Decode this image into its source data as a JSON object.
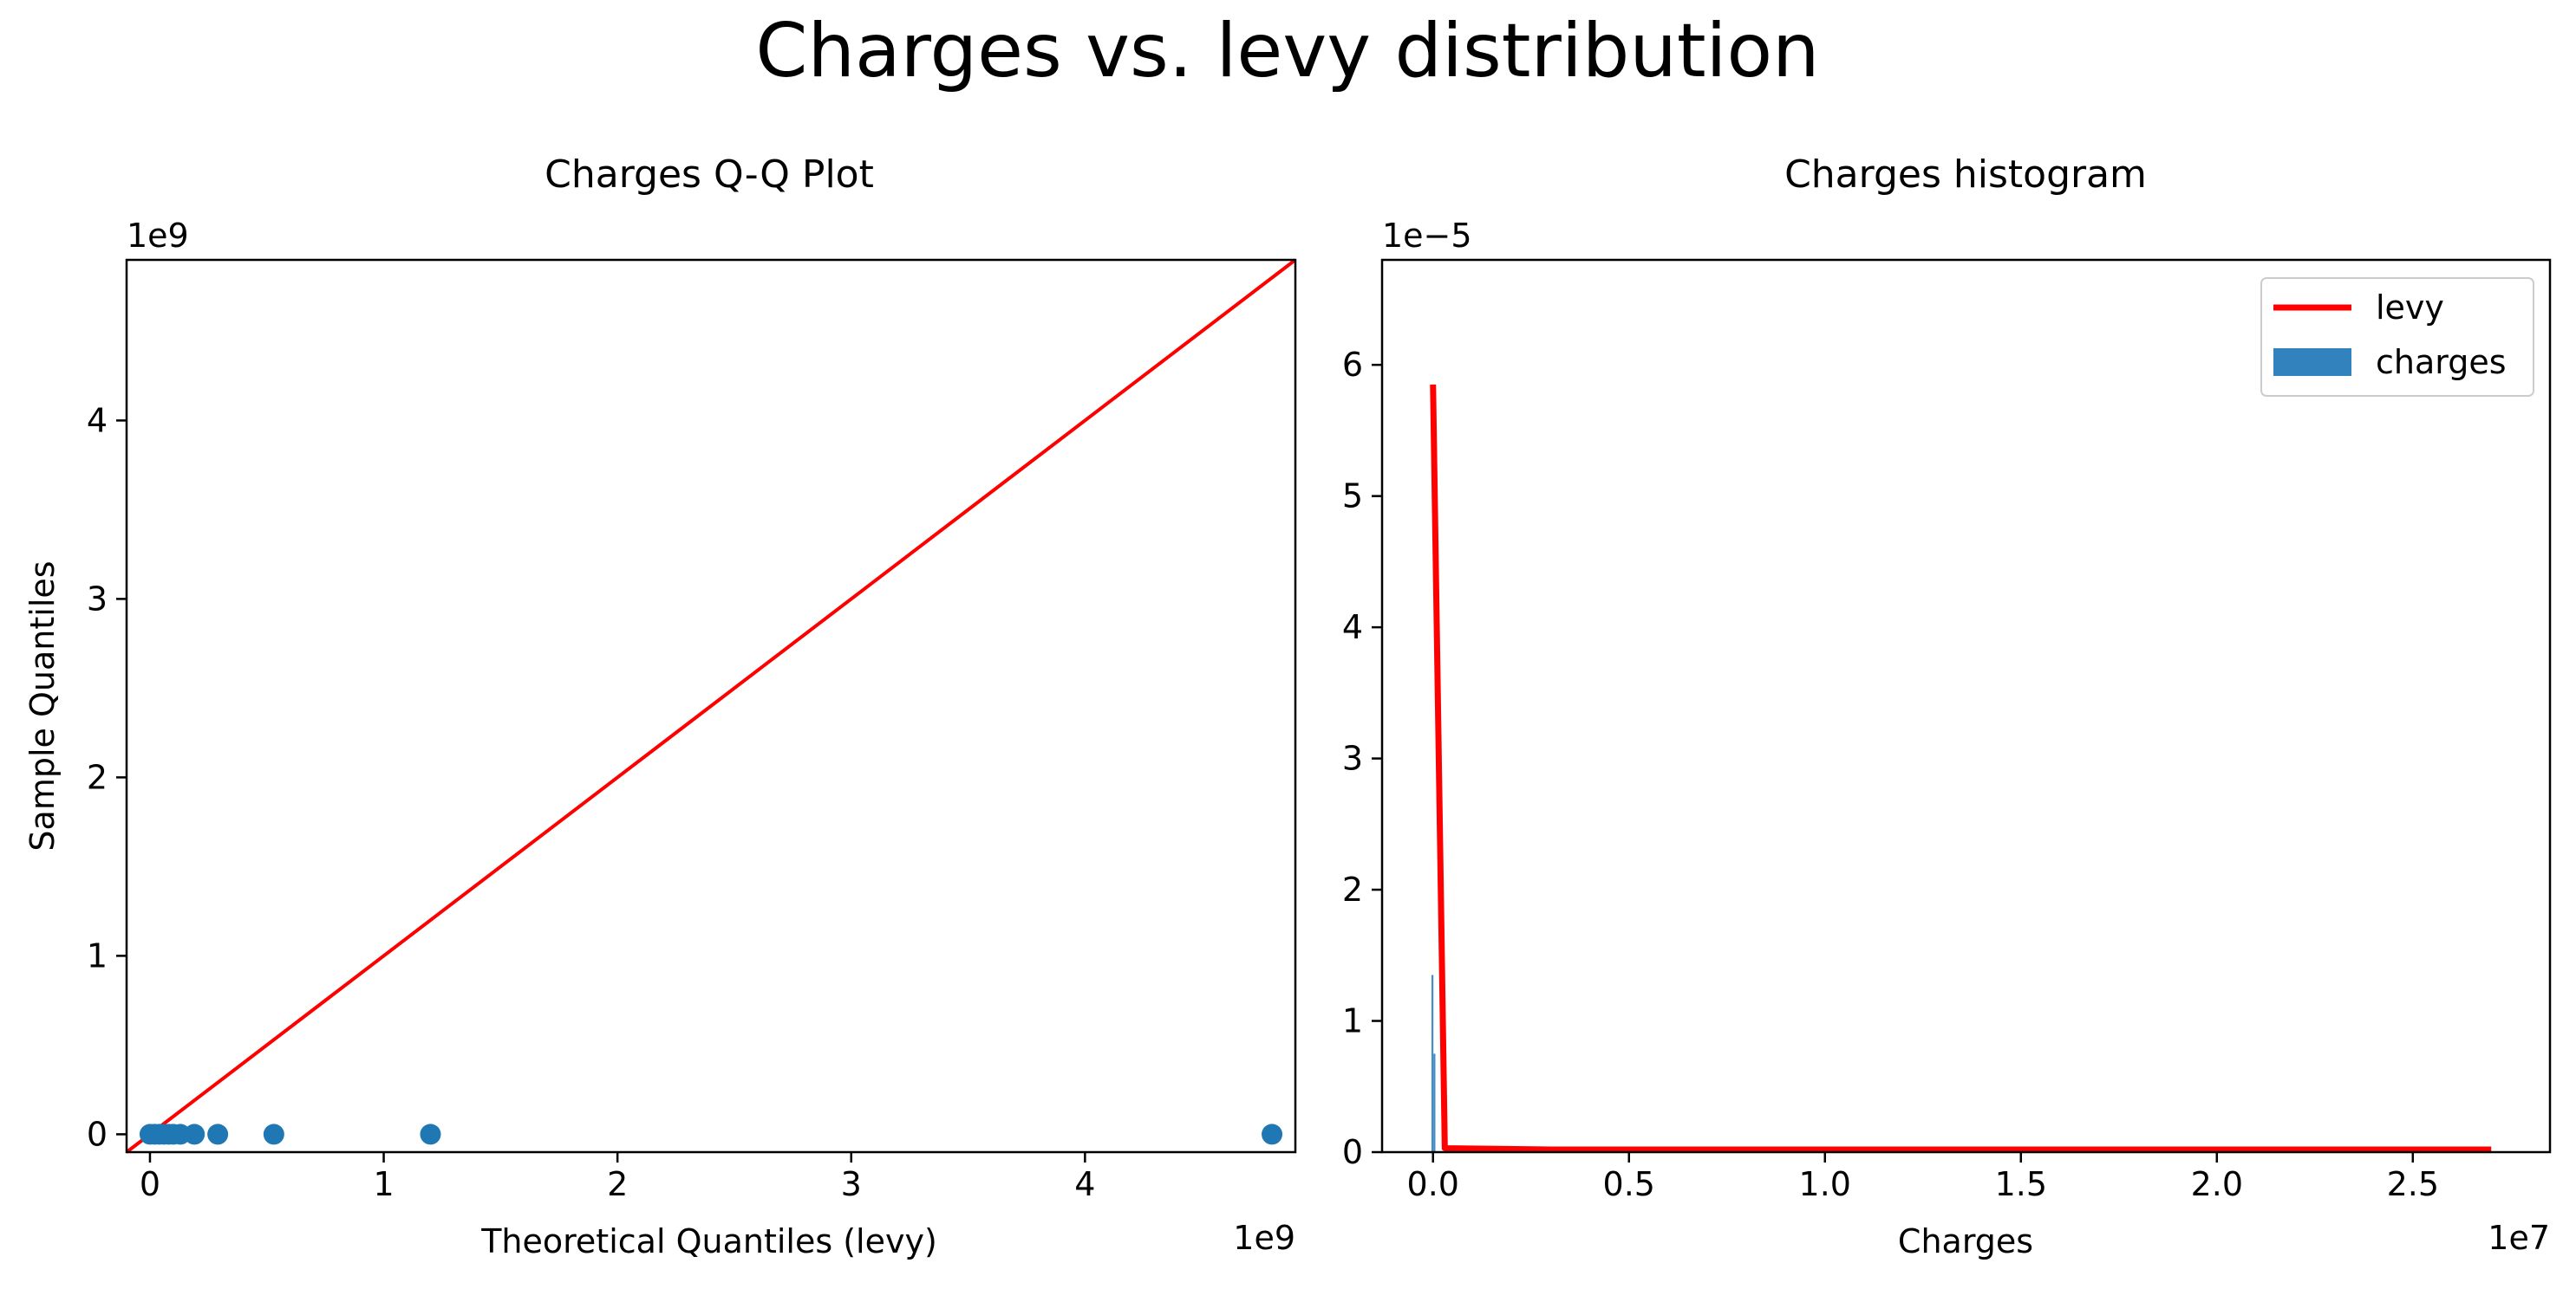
{
  "figure": {
    "title": "Charges vs. levy distribution"
  },
  "colors": {
    "line": "#ff0000",
    "points": "#1f77b4",
    "bars": "#3182bd",
    "axes": "#000000"
  },
  "chart_data": [
    {
      "type": "scatter",
      "title": "Charges Q-Q Plot",
      "xlabel": "Theoretical Quantiles (levy)",
      "ylabel": "Sample Quantiles",
      "x_offset_label": "1e9",
      "y_offset_label": "1e9",
      "xlim": [
        -0.1,
        4.9
      ],
      "ylim": [
        -0.1,
        4.9
      ],
      "x_ticks": [
        0,
        1,
        2,
        3,
        4
      ],
      "y_ticks": [
        0,
        1,
        2,
        3,
        4
      ],
      "grid": false,
      "reference_line": {
        "name": "",
        "x": [
          -0.1,
          4.9
        ],
        "y": [
          -0.1,
          4.9
        ]
      },
      "points": {
        "x": [
          0.0,
          0.02,
          0.04,
          0.06,
          0.08,
          0.1,
          0.13,
          0.19,
          0.29,
          0.53,
          1.2,
          4.8
        ],
        "y": [
          0.0,
          0.0,
          0.0,
          0.0,
          0.0,
          0.0,
          0.0,
          0.0,
          0.0,
          0.0,
          0.0,
          0.0
        ]
      }
    },
    {
      "type": "bar",
      "title": "Charges histogram",
      "xlabel": "Charges",
      "ylabel": "",
      "x_offset_label": "1e7",
      "y_offset_label": "1e−5",
      "xlim": [
        -0.13,
        2.85
      ],
      "ylim": [
        0,
        6.8
      ],
      "x_ticks": [
        "0.0",
        "0.5",
        "1.0",
        "1.5",
        "2.0",
        "2.5"
      ],
      "y_ticks": [
        "0",
        "1",
        "2",
        "3",
        "4",
        "5",
        "6"
      ],
      "grid": false,
      "legend": {
        "placement": "top-right",
        "entries": [
          "levy",
          "charges"
        ]
      },
      "series": [
        {
          "name": "levy",
          "type": "line",
          "x": [
            0.0,
            0.03,
            0.3,
            1.0,
            2.0,
            2.7
          ],
          "y": [
            5.85,
            0.03,
            0.02,
            0.02,
            0.02,
            0.02
          ]
        },
        {
          "name": "charges",
          "type": "histogram",
          "bins": [
            {
              "x0": -0.004,
              "x1": 0.001,
              "value": 1.35
            },
            {
              "x0": 0.001,
              "x1": 0.006,
              "value": 0.75
            }
          ]
        }
      ]
    }
  ]
}
